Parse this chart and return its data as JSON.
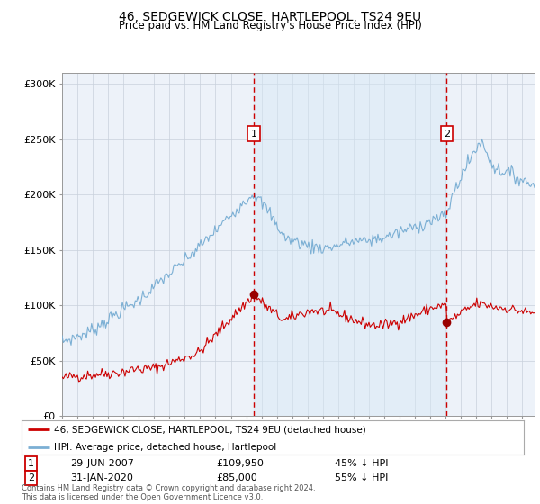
{
  "title": "46, SEDGEWICK CLOSE, HARTLEPOOL, TS24 9EU",
  "subtitle": "Price paid vs. HM Land Registry's House Price Index (HPI)",
  "legend_line1": "46, SEDGEWICK CLOSE, HARTLEPOOL, TS24 9EU (detached house)",
  "legend_line2": "HPI: Average price, detached house, Hartlepool",
  "annotation1_date": "29-JUN-2007",
  "annotation1_price": "£109,950",
  "annotation1_pct": "45% ↓ HPI",
  "annotation2_date": "31-JAN-2020",
  "annotation2_price": "£85,000",
  "annotation2_pct": "55% ↓ HPI",
  "footnote": "Contains HM Land Registry data © Crown copyright and database right 2024.\nThis data is licensed under the Open Government Licence v3.0.",
  "hpi_color": "#7bafd4",
  "hpi_fill_color": "#d6e8f5",
  "price_color": "#cc0000",
  "marker_color": "#990000",
  "vline_color": "#cc0000",
  "background_color": "#ffffff",
  "plot_bg_color": "#edf2f9",
  "grid_color": "#c8d0dc",
  "ylim": [
    0,
    310000
  ],
  "yticks": [
    0,
    50000,
    100000,
    150000,
    200000,
    250000,
    300000
  ],
  "ytick_labels": [
    "£0",
    "£50K",
    "£100K",
    "£150K",
    "£200K",
    "£250K",
    "£300K"
  ],
  "vline1_x": 2007.5,
  "vline2_x": 2020.08,
  "point1_x": 2007.5,
  "point1_y": 109950,
  "point2_x": 2020.08,
  "point2_y": 85000,
  "xlim_left": 1995,
  "xlim_right": 2025.8
}
